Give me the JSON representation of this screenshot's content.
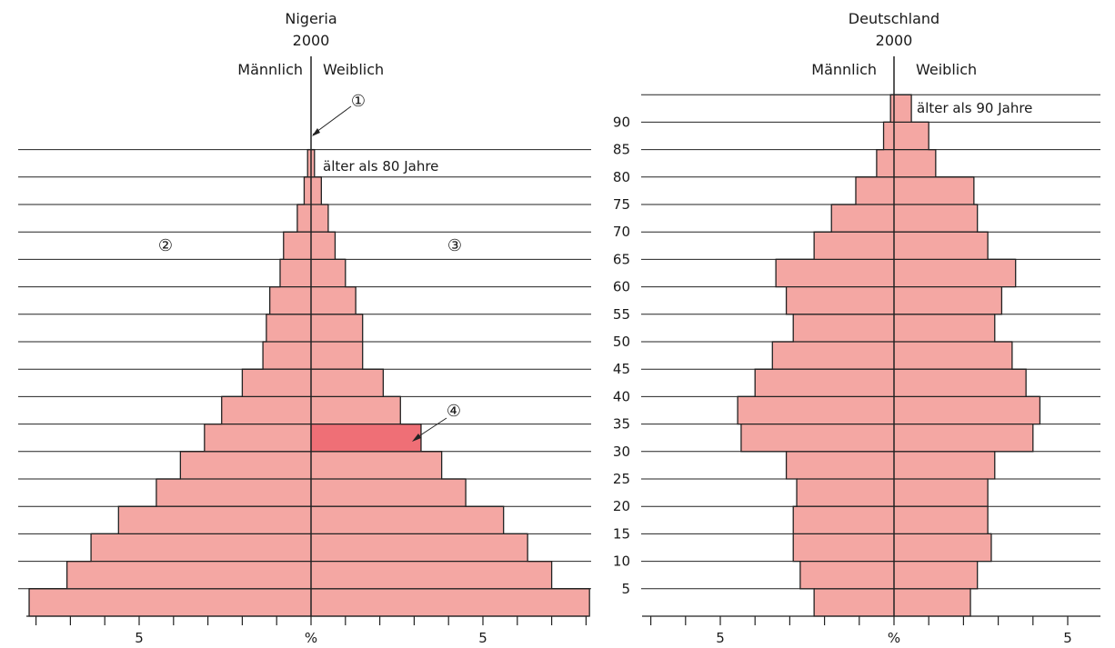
{
  "chart_data": [
    {
      "type": "bar",
      "subtype": "population-pyramid",
      "title": "Nigeria",
      "subtitle": "2000",
      "left_label": "Männlich",
      "right_label": "Weiblich",
      "x_unit_label": "%",
      "x_tick_labels": [
        "5",
        "%",
        "5"
      ],
      "xlim": [
        -8.2,
        8.2
      ],
      "age_bands": [
        "0-4",
        "5-9",
        "10-14",
        "15-19",
        "20-24",
        "25-29",
        "30-34",
        "35-39",
        "40-44",
        "45-49",
        "50-54",
        "55-59",
        "60-64",
        "65-69",
        "70-74",
        "75-79",
        "80+"
      ],
      "series": [
        {
          "name": "Männlich",
          "values": [
            8.2,
            7.1,
            6.4,
            5.6,
            4.5,
            3.8,
            3.1,
            2.6,
            2.0,
            1.4,
            1.3,
            1.2,
            0.9,
            0.8,
            0.4,
            0.2,
            0.1
          ]
        },
        {
          "name": "Weiblich",
          "values": [
            8.1,
            7.0,
            6.3,
            5.6,
            4.5,
            3.8,
            3.2,
            2.6,
            2.1,
            1.5,
            1.5,
            1.3,
            1.0,
            0.7,
            0.5,
            0.3,
            0.1
          ]
        }
      ],
      "highlight": {
        "series": "Weiblich",
        "band": "30-34",
        "color": "#ef6f76"
      },
      "annotations": [
        {
          "text": "älter als 80 Jahre",
          "band": "80+"
        },
        {
          "marker": "①"
        },
        {
          "marker": "②"
        },
        {
          "marker": "③"
        },
        {
          "marker": "④"
        }
      ],
      "bar_color": "#f4a7a3",
      "grid": true
    },
    {
      "type": "bar",
      "subtype": "population-pyramid",
      "title": "Deutschland",
      "subtitle": "2000",
      "left_label": "Männlich",
      "right_label": "Weiblich",
      "x_unit_label": "%",
      "x_tick_labels": [
        "5",
        "%",
        "5"
      ],
      "xlim": [
        -7.0,
        6.0
      ],
      "age_bands": [
        "0-4",
        "5-9",
        "10-14",
        "15-19",
        "20-24",
        "25-29",
        "30-34",
        "35-39",
        "40-44",
        "45-49",
        "50-54",
        "55-59",
        "60-64",
        "65-69",
        "70-74",
        "75-79",
        "80-84",
        "85-89",
        "90+"
      ],
      "age_ticks": [
        5,
        10,
        15,
        20,
        25,
        30,
        35,
        40,
        45,
        50,
        55,
        60,
        65,
        70,
        75,
        80,
        85,
        90
      ],
      "series": [
        {
          "name": "Männlich",
          "values": [
            2.3,
            2.7,
            2.9,
            2.9,
            2.8,
            3.1,
            4.4,
            4.5,
            4.0,
            3.5,
            2.9,
            3.1,
            3.4,
            2.3,
            1.8,
            1.1,
            0.5,
            0.3,
            0.1
          ]
        },
        {
          "name": "Weiblich",
          "values": [
            2.2,
            2.4,
            2.8,
            2.7,
            2.7,
            2.9,
            4.0,
            4.2,
            3.8,
            3.4,
            2.9,
            3.1,
            3.5,
            2.7,
            2.4,
            2.3,
            1.2,
            1.0,
            0.5
          ]
        }
      ],
      "annotations": [
        {
          "text": "älter als 90 Jahre",
          "band": "90+"
        }
      ],
      "bar_color": "#f4a7a3",
      "grid": true
    }
  ],
  "markers": {
    "m1": "①",
    "m2": "②",
    "m3": "③",
    "m4": "④"
  }
}
